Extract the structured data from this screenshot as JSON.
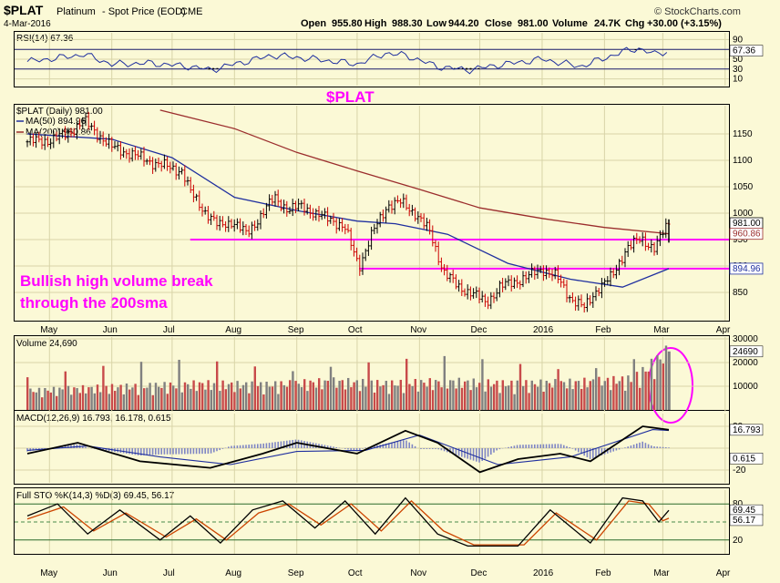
{
  "header": {
    "symbol": "$PLAT",
    "name": "Platinum",
    "desc": "- Spot Price (EOD)",
    "exchange": "CME",
    "date": "4-Mar-2016",
    "copyright": "© StockCharts.com",
    "ohlc": {
      "open_label": "Open",
      "open": "955.80",
      "high_label": "High",
      "high": "988.30",
      "low_label": "Low",
      "low": "944.20",
      "close_label": "Close",
      "close": "981.00",
      "volume_label": "Volume",
      "volume": "24.7K",
      "chg_label": "Chg",
      "chg": "+30.00 (+3.15%)"
    }
  },
  "panels": {
    "rsi": {
      "label": "RSI(14) 67.36",
      "ticks": [
        "90",
        "70",
        "50",
        "30",
        "10"
      ],
      "value_tag": "67.36"
    },
    "price": {
      "label": "$PLAT (Daily) 981.00",
      "ma50_label": "MA(50) 894.96",
      "ma200_label": "MA(200) 960.86",
      "ticks": [
        "1150",
        "1100",
        "1050",
        "1000",
        "950",
        "900",
        "850"
      ],
      "tags": {
        "close": "981.00",
        "ma200": "960.86",
        "ma50": "894.96"
      }
    },
    "volume": {
      "label": "Volume 24,690",
      "ticks": [
        "30000",
        "20000",
        "10000"
      ],
      "value_tag": "24690"
    },
    "macd": {
      "label": "MACD(12,26,9) 16.793, 16.178, 0.615",
      "ticks": [
        "20",
        "-20"
      ],
      "tags": [
        "16.793",
        "0.615"
      ]
    },
    "sto": {
      "label": "Full STO %K(14,3) %D(3) 69.45, 56.17",
      "ticks": [
        "80",
        "20"
      ],
      "tags": [
        "69.45",
        "56.17"
      ]
    }
  },
  "months": [
    "May",
    "Jun",
    "Jul",
    "Aug",
    "Sep",
    "Oct",
    "Nov",
    "Dec",
    "2016",
    "Feb",
    "Mar",
    "Apr"
  ],
  "annotations": {
    "title": "$PLAT",
    "note_line1": "Bullish high volume break",
    "note_line2": "through the 200sma"
  },
  "colors": {
    "background": "#fbf9d6",
    "up_bar": "#000000",
    "down_bar": "#cc0000",
    "ma50": "#1f2f9f",
    "ma200": "#9b2d2d",
    "support": "#ff00ff",
    "volume_up": "#808080",
    "volume_down": "#c84a4a",
    "sto_k": "#000000",
    "sto_d": "#cc4400"
  },
  "chart_data": {
    "type": "line",
    "title": "$PLAT",
    "x_range": [
      "2015-04-20",
      "2016-03-04"
    ],
    "price": {
      "ylim": [
        800,
        1200
      ],
      "close_points": [
        [
          "2015-04-20",
          1135
        ],
        [
          "2015-05-01",
          1138
        ],
        [
          "2015-05-10",
          1150
        ],
        [
          "2015-05-18",
          1175
        ],
        [
          "2015-05-25",
          1150
        ],
        [
          "2015-06-01",
          1125
        ],
        [
          "2015-06-12",
          1110
        ],
        [
          "2015-06-22",
          1095
        ],
        [
          "2015-07-01",
          1085
        ],
        [
          "2015-07-06",
          1080
        ],
        [
          "2015-07-10",
          1040
        ],
        [
          "2015-07-17",
          1005
        ],
        [
          "2015-07-24",
          975
        ],
        [
          "2015-07-31",
          985
        ],
        [
          "2015-08-07",
          960
        ],
        [
          "2015-08-14",
          995
        ],
        [
          "2015-08-21",
          1030
        ],
        [
          "2015-08-28",
          1005
        ],
        [
          "2015-09-04",
          1015
        ],
        [
          "2015-09-11",
          995
        ],
        [
          "2015-09-18",
          990
        ],
        [
          "2015-09-25",
          970
        ],
        [
          "2015-10-02",
          900
        ],
        [
          "2015-10-09",
          965
        ],
        [
          "2015-10-16",
          1015
        ],
        [
          "2015-10-23",
          1020
        ],
        [
          "2015-10-30",
          1000
        ],
        [
          "2015-11-06",
          965
        ],
        [
          "2015-11-13",
          890
        ],
        [
          "2015-11-20",
          860
        ],
        [
          "2015-11-27",
          850
        ],
        [
          "2015-12-04",
          830
        ],
        [
          "2015-12-11",
          860
        ],
        [
          "2015-12-18",
          870
        ],
        [
          "2015-12-25",
          880
        ],
        [
          "2016-01-01",
          895
        ],
        [
          "2016-01-08",
          880
        ],
        [
          "2016-01-15",
          840
        ],
        [
          "2016-01-22",
          820
        ],
        [
          "2016-01-29",
          860
        ],
        [
          "2016-02-05",
          880
        ],
        [
          "2016-02-12",
          935
        ],
        [
          "2016-02-19",
          950
        ],
        [
          "2016-02-26",
          935
        ],
        [
          "2016-03-04",
          981
        ]
      ],
      "ma50_points": [
        [
          "2015-04-20",
          1150
        ],
        [
          "2015-06-01",
          1140
        ],
        [
          "2015-07-01",
          1105
        ],
        [
          "2015-08-01",
          1030
        ],
        [
          "2015-09-01",
          1005
        ],
        [
          "2015-10-01",
          985
        ],
        [
          "2015-10-20",
          980
        ],
        [
          "2015-11-15",
          960
        ],
        [
          "2015-12-15",
          905
        ],
        [
          "2016-01-15",
          875
        ],
        [
          "2016-02-10",
          860
        ],
        [
          "2016-03-04",
          895
        ]
      ],
      "ma200_points": [
        [
          "2015-06-25",
          1195
        ],
        [
          "2015-08-01",
          1160
        ],
        [
          "2015-09-01",
          1115
        ],
        [
          "2015-10-01",
          1080
        ],
        [
          "2015-11-01",
          1045
        ],
        [
          "2015-12-01",
          1010
        ],
        [
          "2016-01-01",
          990
        ],
        [
          "2016-02-01",
          973
        ],
        [
          "2016-03-04",
          961
        ]
      ],
      "support_lines": [
        {
          "from": "2015-07-10",
          "to": "2016-03-04",
          "value": 950
        },
        {
          "from": "2015-10-02",
          "to": "2016-03-04",
          "value": 895
        }
      ]
    },
    "rsi": {
      "ylim": [
        0,
        100
      ],
      "points": [
        [
          "2015-04-20",
          45
        ],
        [
          "2015-05-10",
          55
        ],
        [
          "2015-05-18",
          60
        ],
        [
          "2015-06-01",
          40
        ],
        [
          "2015-06-20",
          42
        ],
        [
          "2015-07-10",
          35
        ],
        [
          "2015-07-20",
          28
        ],
        [
          "2015-08-01",
          40
        ],
        [
          "2015-08-20",
          58
        ],
        [
          "2015-09-10",
          50
        ],
        [
          "2015-10-01",
          40
        ],
        [
          "2015-10-15",
          62
        ],
        [
          "2015-10-25",
          58
        ],
        [
          "2015-11-10",
          35
        ],
        [
          "2015-11-25",
          28
        ],
        [
          "2015-12-10",
          38
        ],
        [
          "2016-01-01",
          50
        ],
        [
          "2016-01-20",
          35
        ],
        [
          "2016-02-10",
          65
        ],
        [
          "2016-02-18",
          72
        ],
        [
          "2016-02-26",
          60
        ],
        [
          "2016-03-04",
          67.36
        ]
      ]
    },
    "volume": {
      "ylim": [
        0,
        30000
      ],
      "last": 24690,
      "points": [
        [
          "2015-04-20",
          8000
        ],
        [
          "2015-05-15",
          9000
        ],
        [
          "2015-06-15",
          10000
        ],
        [
          "2015-07-15",
          11000
        ],
        [
          "2015-08-15",
          10500
        ],
        [
          "2015-09-20",
          12000
        ],
        [
          "2015-10-15",
          11000
        ],
        [
          "2015-11-15",
          12000
        ],
        [
          "2015-12-15",
          11000
        ],
        [
          "2016-01-15",
          11500
        ],
        [
          "2016-02-15",
          13000
        ],
        [
          "2016-03-04",
          24690
        ]
      ]
    },
    "macd": {
      "ylim": [
        -30,
        30
      ],
      "macd_points": [
        [
          "2015-04-20",
          -5
        ],
        [
          "2015-05-15",
          5
        ],
        [
          "2015-06-15",
          -12
        ],
        [
          "2015-07-20",
          -18
        ],
        [
          "2015-08-15",
          -5
        ],
        [
          "2015-09-01",
          5
        ],
        [
          "2015-10-01",
          -5
        ],
        [
          "2015-10-25",
          16
        ],
        [
          "2015-11-10",
          5
        ],
        [
          "2015-12-01",
          -22
        ],
        [
          "2015-12-20",
          -10
        ],
        [
          "2016-01-10",
          -5
        ],
        [
          "2016-01-25",
          -12
        ],
        [
          "2016-02-20",
          20
        ],
        [
          "2016-03-04",
          16.793
        ]
      ],
      "signal_points": [
        [
          "2015-04-20",
          -2
        ],
        [
          "2015-05-20",
          2
        ],
        [
          "2015-06-25",
          -8
        ],
        [
          "2015-07-30",
          -15
        ],
        [
          "2015-09-01",
          -3
        ],
        [
          "2015-10-05",
          -2
        ],
        [
          "2015-11-01",
          12
        ],
        [
          "2015-12-10",
          -15
        ],
        [
          "2016-01-15",
          -8
        ],
        [
          "2016-02-25",
          17
        ],
        [
          "2016-03-04",
          16.178
        ]
      ],
      "histogram_last": 0.615
    },
    "sto": {
      "ylim": [
        0,
        100
      ],
      "k_points": [
        [
          "2015-04-20",
          60
        ],
        [
          "2015-05-05",
          80
        ],
        [
          "2015-05-20",
          30
        ],
        [
          "2015-06-05",
          70
        ],
        [
          "2015-06-25",
          20
        ],
        [
          "2015-07-10",
          60
        ],
        [
          "2015-07-25",
          15
        ],
        [
          "2015-08-10",
          70
        ],
        [
          "2015-08-25",
          85
        ],
        [
          "2015-09-10",
          40
        ],
        [
          "2015-09-25",
          85
        ],
        [
          "2015-10-10",
          30
        ],
        [
          "2015-10-25",
          90
        ],
        [
          "2015-11-10",
          30
        ],
        [
          "2015-11-25",
          10
        ],
        [
          "2015-12-20",
          10
        ],
        [
          "2016-01-05",
          70
        ],
        [
          "2016-01-25",
          15
        ],
        [
          "2016-02-10",
          90
        ],
        [
          "2016-02-20",
          85
        ],
        [
          "2016-02-28",
          50
        ],
        [
          "2016-03-04",
          69.45
        ]
      ],
      "d_points": [
        [
          "2015-04-20",
          55
        ],
        [
          "2015-05-08",
          75
        ],
        [
          "2015-05-23",
          35
        ],
        [
          "2015-06-08",
          65
        ],
        [
          "2015-06-28",
          25
        ],
        [
          "2015-07-13",
          55
        ],
        [
          "2015-07-28",
          20
        ],
        [
          "2015-08-13",
          65
        ],
        [
          "2015-08-28",
          80
        ],
        [
          "2015-09-13",
          45
        ],
        [
          "2015-09-28",
          80
        ],
        [
          "2015-10-13",
          35
        ],
        [
          "2015-10-28",
          85
        ],
        [
          "2015-11-13",
          35
        ],
        [
          "2015-11-28",
          12
        ],
        [
          "2015-12-23",
          12
        ],
        [
          "2016-01-08",
          65
        ],
        [
          "2016-01-28",
          20
        ],
        [
          "2016-02-13",
          85
        ],
        [
          "2016-02-23",
          80
        ],
        [
          "2016-03-01",
          52
        ],
        [
          "2016-03-04",
          56.17
        ]
      ]
    }
  }
}
